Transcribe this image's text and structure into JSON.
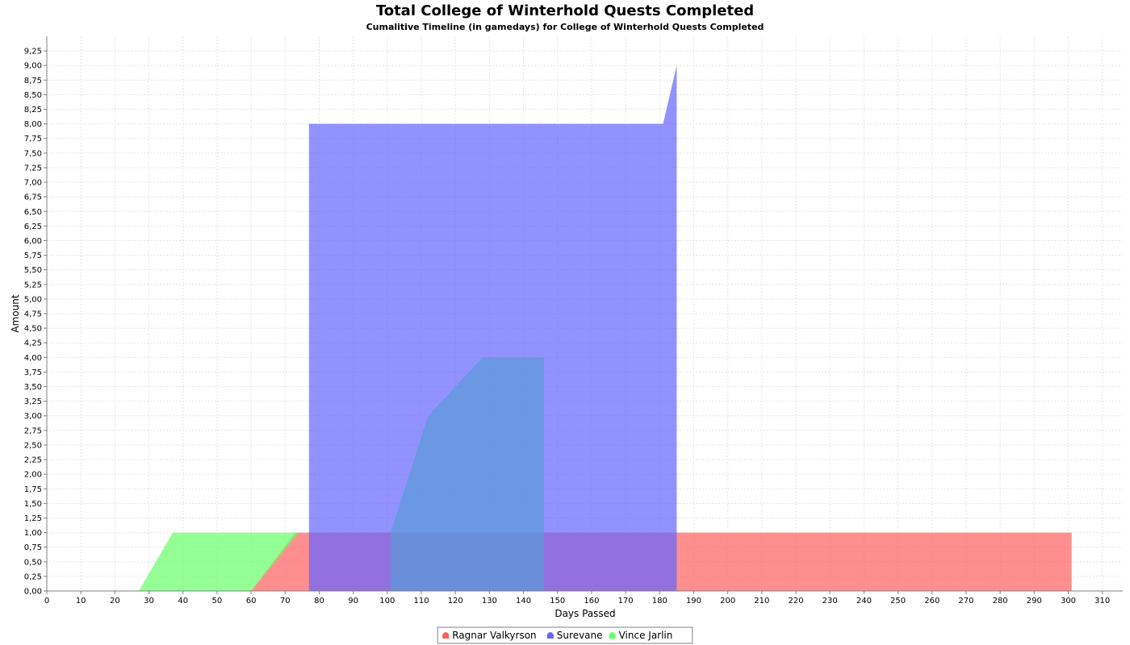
{
  "chart_data": {
    "type": "area",
    "title": "Total College of Winterhold Quests Completed",
    "subtitle": "Cumalitive Timeline (in gamedays) for College of Winterhold Quests Completed",
    "xlabel": "Days Passed",
    "ylabel": "Amount",
    "xlim": [
      0,
      316
    ],
    "ylim": [
      0,
      9.5
    ],
    "x_tick_step": 10,
    "y_tick_step": 0.25,
    "grid": true,
    "legend_position": "bottom-center",
    "series": [
      {
        "name": "Ragnar Valkyrson",
        "color": "#ff6060",
        "points": [
          [
            60,
            0
          ],
          [
            73,
            1
          ],
          [
            301,
            1
          ],
          [
            301,
            0
          ]
        ]
      },
      {
        "name": "Surevane",
        "color": "#6464ff",
        "points": [
          [
            77,
            0
          ],
          [
            77,
            8
          ],
          [
            101,
            8
          ],
          [
            112,
            8
          ],
          [
            128,
            8
          ],
          [
            146,
            8
          ],
          [
            181,
            8
          ],
          [
            185,
            9
          ],
          [
            185,
            0
          ]
        ]
      },
      {
        "name": "Surevane",
        "color": "#5a9bd5",
        "points": [
          [
            101,
            0
          ],
          [
            101,
            1
          ],
          [
            112,
            3
          ],
          [
            128,
            4
          ],
          [
            146,
            4
          ],
          [
            146,
            0
          ]
        ]
      },
      {
        "name": "Vince Jarlin",
        "color": "#66ff66",
        "points": [
          [
            27,
            0
          ],
          [
            37,
            1
          ],
          [
            74,
            1
          ],
          [
            60,
            0
          ]
        ]
      }
    ]
  }
}
